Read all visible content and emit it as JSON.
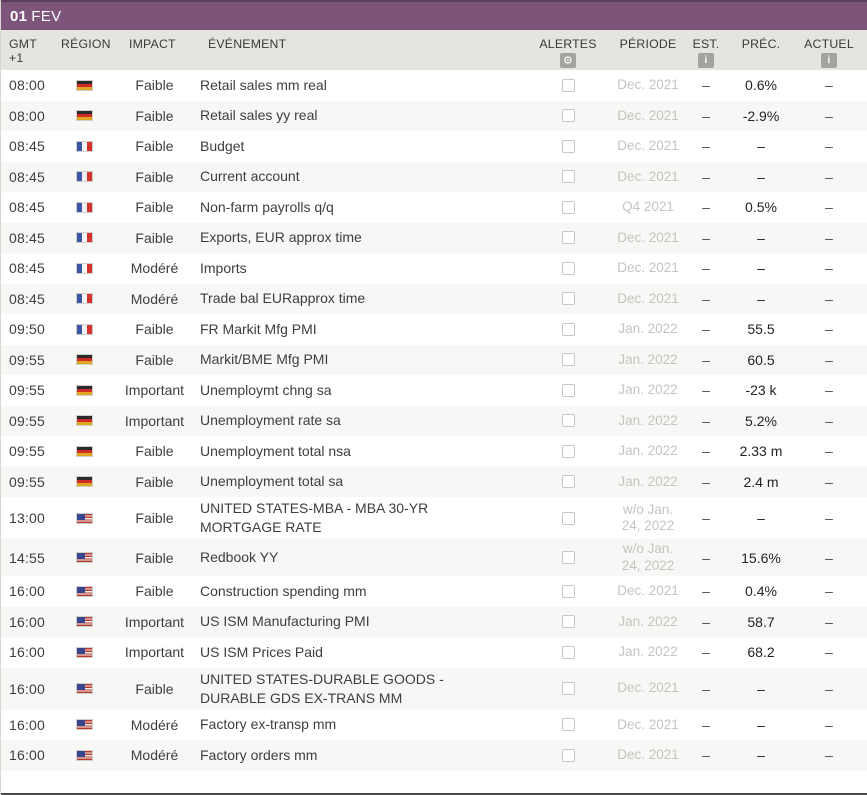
{
  "header": {
    "day": "01",
    "month": "FEV"
  },
  "columns": {
    "time": "GMT +1",
    "region": "RÉGION",
    "impact": "IMPACT",
    "event": "ÉVÉNEMENT",
    "alerts": "ALERTES",
    "period": "PÉRIODE",
    "est": "EST.",
    "prev": "PRÉC.",
    "actual": "ACTUEL"
  },
  "header_icons": {
    "alerts": "gear-icon",
    "est": "info-icon",
    "actual": "info-icon",
    "gear_glyph": "⚙",
    "info_glyph": "i"
  },
  "colors": {
    "accent_purple": "#7d557b",
    "col_header_bg": "#e4e4e0",
    "alt_row_bg": "#f7f7f5",
    "period_text": "#c4c4c0"
  },
  "rows": [
    {
      "time": "08:00",
      "region": "de",
      "impact": "Faible",
      "event": "Retail sales mm real",
      "period": "Dec. 2021",
      "est": "–",
      "prev": "0.6%",
      "actual": "–"
    },
    {
      "time": "08:00",
      "region": "de",
      "impact": "Faible",
      "event": "Retail sales yy real",
      "period": "Dec. 2021",
      "est": "–",
      "prev": "-2.9%",
      "actual": "–"
    },
    {
      "time": "08:45",
      "region": "fr",
      "impact": "Faible",
      "event": "Budget",
      "period": "Dec. 2021",
      "est": "–",
      "prev": "–",
      "actual": "–"
    },
    {
      "time": "08:45",
      "region": "fr",
      "impact": "Faible",
      "event": "Current account",
      "period": "Dec. 2021",
      "est": "–",
      "prev": "–",
      "actual": "–"
    },
    {
      "time": "08:45",
      "region": "fr",
      "impact": "Faible",
      "event": "Non-farm payrolls q/q",
      "period": "Q4 2021",
      "est": "–",
      "prev": "0.5%",
      "actual": "–"
    },
    {
      "time": "08:45",
      "region": "fr",
      "impact": "Faible",
      "event": "Exports, EUR approx time",
      "period": "Dec. 2021",
      "est": "–",
      "prev": "–",
      "actual": "–"
    },
    {
      "time": "08:45",
      "region": "fr",
      "impact": "Modéré",
      "event": "Imports",
      "period": "Dec. 2021",
      "est": "–",
      "prev": "–",
      "actual": "–"
    },
    {
      "time": "08:45",
      "region": "fr",
      "impact": "Modéré",
      "event": "Trade bal EURapprox time",
      "period": "Dec. 2021",
      "est": "–",
      "prev": "–",
      "actual": "–"
    },
    {
      "time": "09:50",
      "region": "fr",
      "impact": "Faible",
      "event": "FR Markit Mfg PMI",
      "period": "Jan. 2022",
      "est": "–",
      "prev": "55.5",
      "actual": "–"
    },
    {
      "time": "09:55",
      "region": "de",
      "impact": "Faible",
      "event": "Markit/BME Mfg PMI",
      "period": "Jan. 2022",
      "est": "–",
      "prev": "60.5",
      "actual": "–"
    },
    {
      "time": "09:55",
      "region": "de",
      "impact": "Important",
      "event": "Unemploymt chng sa",
      "period": "Jan. 2022",
      "est": "–",
      "prev": "-23 k",
      "actual": "–"
    },
    {
      "time": "09:55",
      "region": "de",
      "impact": "Important",
      "event": "Unemployment rate sa",
      "period": "Jan. 2022",
      "est": "–",
      "prev": "5.2%",
      "actual": "–"
    },
    {
      "time": "09:55",
      "region": "de",
      "impact": "Faible",
      "event": "Unemployment total nsa",
      "period": "Jan. 2022",
      "est": "–",
      "prev": "2.33 m",
      "actual": "–"
    },
    {
      "time": "09:55",
      "region": "de",
      "impact": "Faible",
      "event": "Unemployment total sa",
      "period": "Jan. 2022",
      "est": "–",
      "prev": "2.4 m",
      "actual": "–"
    },
    {
      "time": "13:00",
      "region": "us",
      "impact": "Faible",
      "event": "UNITED STATES-MBA - MBA 30-YR MORTGAGE RATE",
      "period": "w/o Jan. 24, 2022",
      "est": "–",
      "prev": "–",
      "actual": "–"
    },
    {
      "time": "14:55",
      "region": "us",
      "impact": "Faible",
      "event": "Redbook YY",
      "period": "w/o Jan. 24, 2022",
      "est": "–",
      "prev": "15.6%",
      "actual": "–"
    },
    {
      "time": "16:00",
      "region": "us",
      "impact": "Faible",
      "event": "Construction spending mm",
      "period": "Dec. 2021",
      "est": "–",
      "prev": "0.4%",
      "actual": "–"
    },
    {
      "time": "16:00",
      "region": "us",
      "impact": "Important",
      "event": "US ISM Manufacturing PMI",
      "period": "Jan. 2022",
      "est": "–",
      "prev": "58.7",
      "actual": "–"
    },
    {
      "time": "16:00",
      "region": "us",
      "impact": "Important",
      "event": "US ISM Prices Paid",
      "period": "Jan. 2022",
      "est": "–",
      "prev": "68.2",
      "actual": "–"
    },
    {
      "time": "16:00",
      "region": "us",
      "impact": "Faible",
      "event": "UNITED STATES-DURABLE GOODS - DURABLE GDS EX-TRANS MM",
      "period": "Dec. 2021",
      "est": "–",
      "prev": "–",
      "actual": "–"
    },
    {
      "time": "16:00",
      "region": "us",
      "impact": "Modéré",
      "event": "Factory ex-transp mm",
      "period": "Dec. 2021",
      "est": "–",
      "prev": "–",
      "actual": "–"
    },
    {
      "time": "16:00",
      "region": "us",
      "impact": "Modéré",
      "event": "Factory orders mm",
      "period": "Dec. 2021",
      "est": "–",
      "prev": "–",
      "actual": "–"
    }
  ]
}
